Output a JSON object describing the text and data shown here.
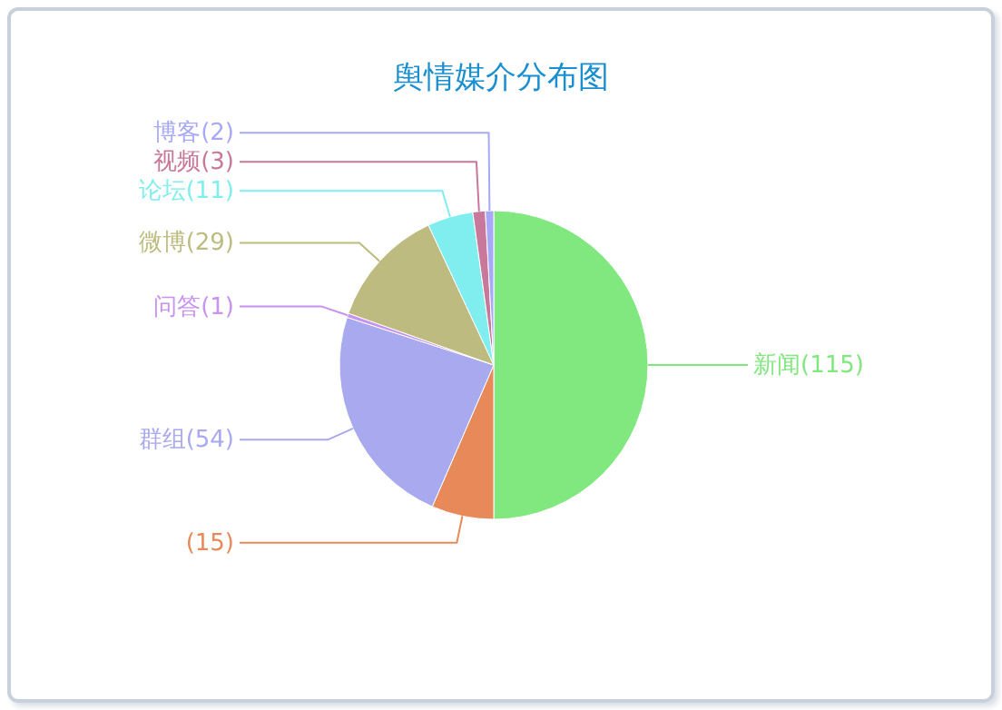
{
  "chart_data": {
    "type": "pie",
    "title": "舆情媒介分布图",
    "categories": [
      "新闻",
      null,
      "群组",
      "问答",
      "微博",
      "论坛",
      "视频",
      "博客"
    ],
    "values": [
      115,
      15,
      54,
      1,
      29,
      11,
      3,
      2
    ],
    "value_labels": [
      "(115)",
      "(15)",
      "(54)",
      "(1)",
      "(29)",
      "(11)",
      "(3)",
      "(2)"
    ],
    "colors": [
      "#80e87e",
      "#e8895a",
      "#a9a9f0",
      "#c792f0",
      "#bdbb7f",
      "#80eeee",
      "#c8789a",
      "#a8a8f8"
    ]
  }
}
